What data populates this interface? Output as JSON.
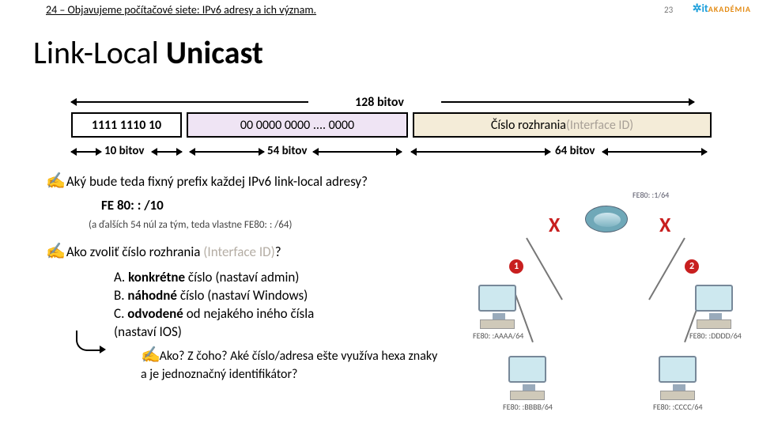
{
  "header": {
    "chapter": "24 – Objavujeme počítačové siete: IPv6 adresy a ich význam.",
    "pagenum": "23",
    "logo_it": "it",
    "logo_akad": "AKADÉMIA"
  },
  "title": {
    "thin": "Link-Local ",
    "bold": "Unicast"
  },
  "addr": {
    "total": "128 bitov",
    "box1": "1111 1110 10",
    "box2": "00 0000 0000 .... 0000",
    "box3a": "Číslo rozhrania ",
    "box3b": "(Interface ID)",
    "sz10": "10 bitov",
    "sz54": "54 bitov",
    "sz64": "64 bitov"
  },
  "body": {
    "q1": "Aký bude teda fixný prefix každej IPv6 link-local adresy?",
    "fe80": "FE 80: : /10",
    "note": "(a ďalších 54 núl za tým, teda vlastne FE80: : /64)",
    "q2a": "Ako zvoliť číslo rozhrania ",
    "q2b": "(Interface ID)",
    "q2c": "?",
    "optA1": "A. ",
    "optA2": "konkrétne",
    "optA3": " číslo (nastaví admin)",
    "optB1": "B. ",
    "optB2": "náhodné",
    "optB3": " číslo (nastaví Windows)",
    "optC1": "C. ",
    "optC2": "odvodené",
    "optC3": " od nejakého iného čísla",
    "optC4": " (nastaví IOS)",
    "sub1": "Ako? Z čoho?",
    "sub2": "Aké číslo/adresa ešte využíva hexa znaky a je jednoznačný identifikátor?"
  },
  "diagram": {
    "fe80r": "FE80: :1/64",
    "lan1": "1",
    "lan2": "2",
    "pcA": "FE80: :AAAA/64",
    "pcB": "FE80: :BBBB/64",
    "pcC": "FE80: :CCCC/64",
    "pcD": "FE80: :DDDD/64"
  }
}
